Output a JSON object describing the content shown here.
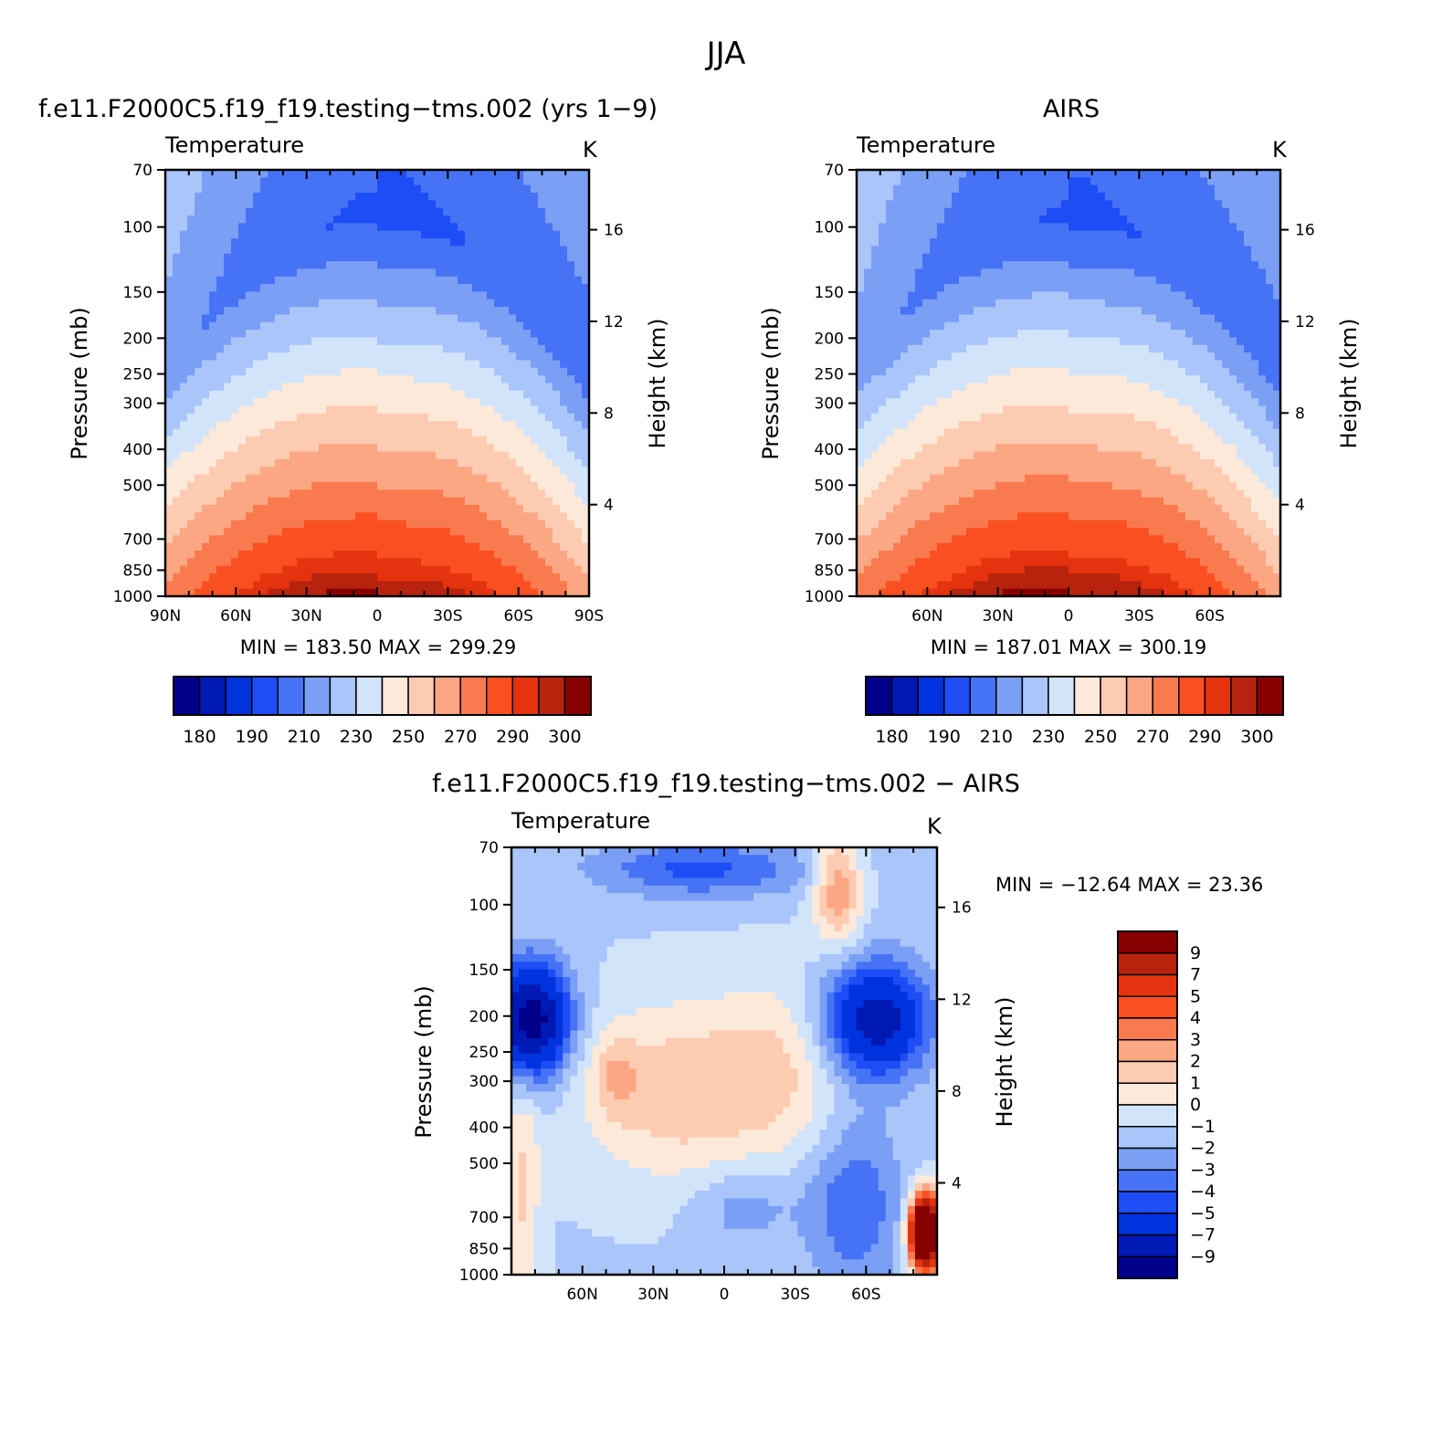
{
  "figure": {
    "title": "JJA"
  },
  "colors": {
    "abs_palette": [
      "#00008b",
      "#0019b4",
      "#0033dd",
      "#1e4df5",
      "#4672f5",
      "#7b9ff5",
      "#a9c5fa",
      "#d2e4fa",
      "#fde9d9",
      "#fdcbb1",
      "#fca784",
      "#fa7a4f",
      "#fa5021",
      "#e4330e",
      "#b8230e",
      "#870000"
    ],
    "diff_palette": [
      "#00008b",
      "#0019b4",
      "#0033dd",
      "#1e4df5",
      "#4672f5",
      "#7b9ff5",
      "#a9c5fa",
      "#d2e4fa",
      "#fde9d9",
      "#fdcbb1",
      "#fca784",
      "#fa7a4f",
      "#fa5021",
      "#e4330e",
      "#b8230e",
      "#870000"
    ]
  },
  "chart_data": [
    {
      "type": "heatmap",
      "title": "f.e11.F2000C5.f19_f19.testing−tms.002 (yrs 1−9)",
      "left_label": "Temperature",
      "right_label": "K",
      "ylabel": "Pressure (mb)",
      "ylabel_right": "Height (km)",
      "x_ticks": [
        "90N",
        "60N",
        "30N",
        "0",
        "30S",
        "60S",
        "90S"
      ],
      "y_ticks": [
        "70",
        "100",
        "150",
        "200",
        "250",
        "300",
        "400",
        "500",
        "700",
        "850",
        "1000"
      ],
      "y_right_ticks": [
        "16",
        "12",
        "8",
        "4"
      ],
      "min_max": "MIN = 183.50   MAX = 299.29",
      "colorbar_labels": [
        "180",
        "190",
        "210",
        "230",
        "250",
        "270",
        "290",
        "300"
      ],
      "lat_range": [
        90,
        -90
      ],
      "pressure_range": [
        70,
        1000
      ],
      "y_scale": "log",
      "field_max": 299.29,
      "field_min": 183.5
    },
    {
      "type": "heatmap",
      "title": "AIRS",
      "left_label": "Temperature",
      "right_label": "K",
      "ylabel": "Pressure (mb)",
      "ylabel_right": "Height (km)",
      "x_ticks": [
        "60N",
        "30N",
        "0",
        "30S",
        "60S"
      ],
      "y_ticks": [
        "70",
        "100",
        "150",
        "200",
        "250",
        "300",
        "400",
        "500",
        "700",
        "850",
        "1000"
      ],
      "y_right_ticks": [
        "16",
        "12",
        "8",
        "4"
      ],
      "min_max": "MIN = 187.01   MAX = 300.19",
      "colorbar_labels": [
        "180",
        "190",
        "210",
        "230",
        "250",
        "270",
        "290",
        "300"
      ],
      "lat_range": [
        90,
        -90
      ],
      "pressure_range": [
        70,
        1000
      ],
      "y_scale": "log",
      "field_max": 300.19,
      "field_min": 187.01
    },
    {
      "type": "heatmap",
      "title": "f.e11.F2000C5.f19_f19.testing−tms.002 − AIRS",
      "left_label": "Temperature",
      "right_label": "K",
      "ylabel": "Pressure (mb)",
      "ylabel_right": "Height (km)",
      "x_ticks": [
        "60N",
        "30N",
        "0",
        "30S",
        "60S"
      ],
      "y_ticks": [
        "70",
        "100",
        "150",
        "200",
        "250",
        "300",
        "400",
        "500",
        "700",
        "850",
        "1000"
      ],
      "y_right_ticks": [
        "16",
        "12",
        "8",
        "4"
      ],
      "min_max": "MIN = −12.64   MAX =   23.36",
      "colorbar_labels": [
        "9",
        "7",
        "5",
        "4",
        "3",
        "2",
        "1",
        "0",
        "−1",
        "−2",
        "−3",
        "−4",
        "−5",
        "−7",
        "−9"
      ],
      "lat_range": [
        90,
        -90
      ],
      "pressure_range": [
        70,
        1000
      ],
      "y_scale": "log"
    }
  ]
}
